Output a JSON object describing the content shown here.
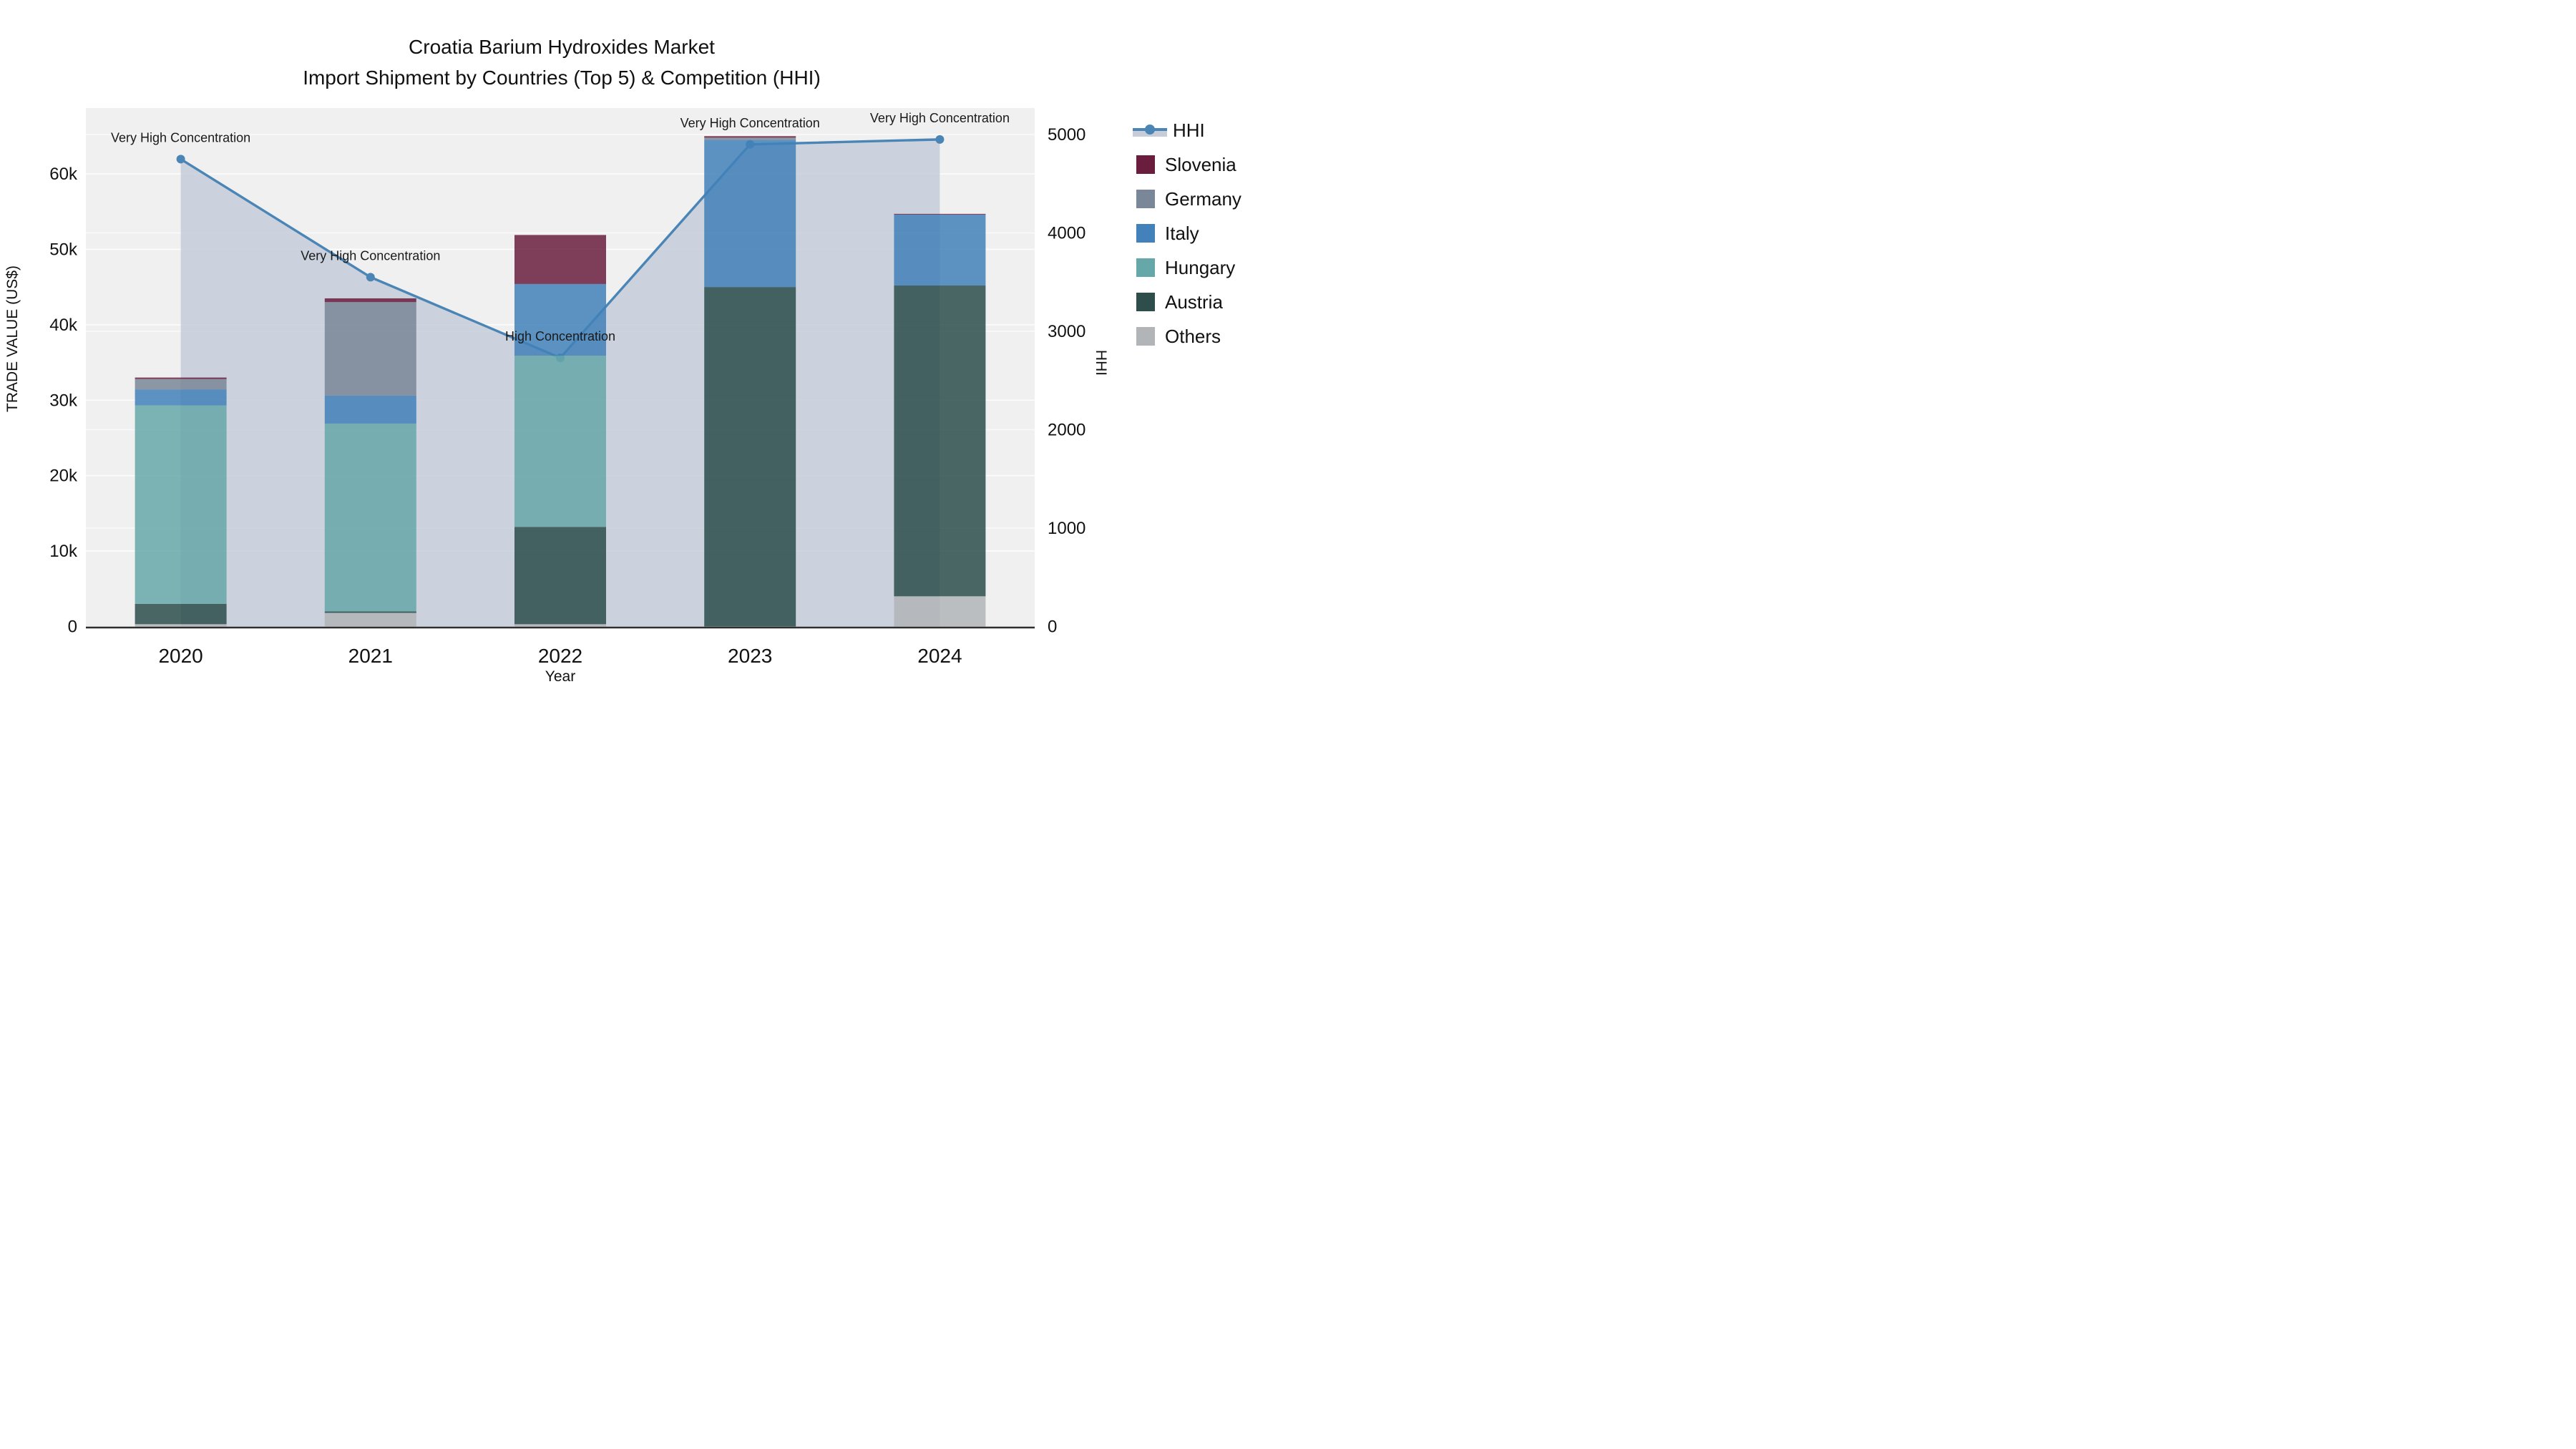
{
  "title": {
    "line1": "Croatia Barium Hydroxides Market",
    "line2": "Import Shipment by Countries (Top 5) & Competition (HHI)"
  },
  "axes": {
    "x_title": "Year",
    "y_left_title": "TRADE VALUE (US$)",
    "y_right_title": "HHI",
    "y_left_ticks": [
      {
        "label": "0",
        "value": 0
      },
      {
        "label": "10k",
        "value": 10000
      },
      {
        "label": "20k",
        "value": 20000
      },
      {
        "label": "30k",
        "value": 30000
      },
      {
        "label": "40k",
        "value": 40000
      },
      {
        "label": "50k",
        "value": 50000
      },
      {
        "label": "60k",
        "value": 60000
      }
    ],
    "y_right_ticks": [
      {
        "label": "0",
        "value": 0
      },
      {
        "label": "1000",
        "value": 1000
      },
      {
        "label": "2000",
        "value": 2000
      },
      {
        "label": "3000",
        "value": 3000
      },
      {
        "label": "4000",
        "value": 4000
      },
      {
        "label": "5000",
        "value": 5000
      }
    ]
  },
  "legend": {
    "position": "top-right-outside",
    "items": [
      {
        "label": "HHI",
        "type": "line",
        "color": "#4a85b6",
        "area_color": "#c7cdd8"
      },
      {
        "label": "Slovenia",
        "type": "swatch",
        "color": "#6a1d3d"
      },
      {
        "label": "Germany",
        "type": "swatch",
        "color": "#7a8798"
      },
      {
        "label": "Italy",
        "type": "swatch",
        "color": "#4281b9"
      },
      {
        "label": "Hungary",
        "type": "swatch",
        "color": "#66a7a9"
      },
      {
        "label": "Austria",
        "type": "swatch",
        "color": "#2d4e4b"
      },
      {
        "label": "Others",
        "type": "swatch",
        "color": "#b2b5b7"
      }
    ]
  },
  "colors": {
    "plot_bg": "#f0f0f1",
    "gridline": "#ffffff",
    "axis_line": "#2e2e2e",
    "hhi_line": "#4a85b6",
    "hhi_area": "#c4ccd9",
    "text": "#111111"
  },
  "chart_data": {
    "type": "bar",
    "subtype": "stacked-bars-with-line-area-overlay",
    "categories": [
      "2020",
      "2021",
      "2022",
      "2023",
      "2024"
    ],
    "bar_value_unit": "TRADE VALUE (US$)",
    "stack_order_bottom_to_top": [
      "Others",
      "Austria",
      "Hungary",
      "Italy",
      "Germany",
      "Slovenia"
    ],
    "series": [
      {
        "name": "Others",
        "color": "#b2b5b7",
        "values": [
          300,
          1800,
          300,
          0,
          4000
        ]
      },
      {
        "name": "Austria",
        "color": "#2d4e4b",
        "values": [
          2700,
          200,
          12900,
          45000,
          41200
        ]
      },
      {
        "name": "Hungary",
        "color": "#66a7a9",
        "values": [
          26300,
          24900,
          22700,
          0,
          0
        ]
      },
      {
        "name": "Italy",
        "color": "#4281b9",
        "values": [
          2100,
          3700,
          9500,
          19500,
          9400
        ]
      },
      {
        "name": "Germany",
        "color": "#7a8798",
        "values": [
          1400,
          12400,
          0,
          300,
          0
        ]
      },
      {
        "name": "Slovenia",
        "color": "#6a1d3d",
        "values": [
          200,
          500,
          6500,
          200,
          100
        ]
      }
    ],
    "bar_totals": [
      33000,
      43500,
      51900,
      65000,
      54700
    ],
    "line_series": {
      "name": "HHI",
      "axis": "right",
      "color": "#4a85b6",
      "fill_color": "#c4ccd9",
      "values": [
        4750,
        3550,
        2730,
        4900,
        4950
      ]
    },
    "annotations": [
      {
        "category": "2020",
        "text": "Very High Concentration"
      },
      {
        "category": "2021",
        "text": "Very High Concentration"
      },
      {
        "category": "2022",
        "text": "High Concentration"
      },
      {
        "category": "2023",
        "text": "Very High Concentration"
      },
      {
        "category": "2024",
        "text": "Very High Concentration"
      }
    ],
    "ylim_left": [
      0,
      68000
    ],
    "ylim_right": [
      0,
      5000
    ],
    "grid": true,
    "legend_position": "right"
  }
}
